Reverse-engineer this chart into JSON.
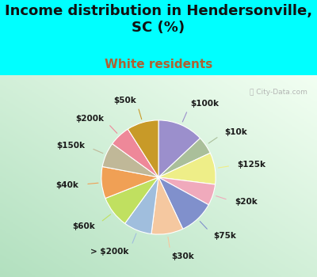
{
  "title": "Income distribution in Hendersonville,\nSC (%)",
  "subtitle": "White residents",
  "bg_color": "#00FFFF",
  "labels": [
    "$100k",
    "$10k",
    "$125k",
    "$20k",
    "$75k",
    "$30k",
    "> $200k",
    "$60k",
    "$40k",
    "$150k",
    "$200k",
    "$50k"
  ],
  "sizes": [
    13,
    5,
    9,
    6,
    10,
    9,
    8,
    9,
    9,
    7,
    6,
    9
  ],
  "colors": [
    "#9B8FCC",
    "#AABF9A",
    "#EEEE88",
    "#F0AABC",
    "#8090CC",
    "#F5C8A0",
    "#A0BEDD",
    "#C0E060",
    "#F0A055",
    "#C0B898",
    "#EE8899",
    "#C89A28"
  ],
  "watermark": "City-Data.com",
  "title_fontsize": 13,
  "subtitle_fontsize": 11,
  "subtitle_color": "#B06030",
  "label_fontsize": 7.5,
  "title_color": "#111111"
}
